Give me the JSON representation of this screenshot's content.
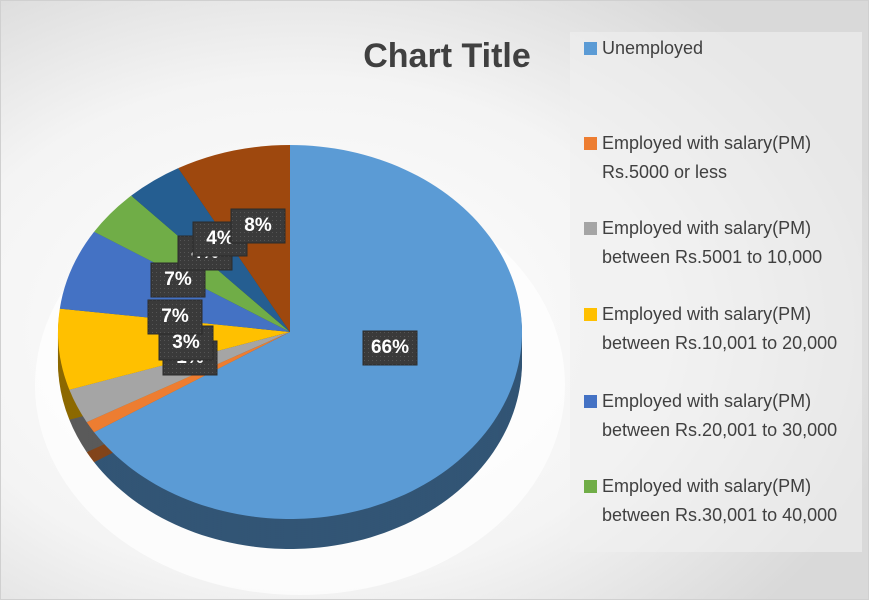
{
  "chart_data": {
    "type": "pie3d",
    "title": "Chart Title",
    "categories": [
      "Unemployed",
      "Employed with salary(PM) Rs.5000 or less",
      "Employed with salary(PM) between Rs.5001 to 10,000",
      "Employed with salary(PM) between Rs.10,001 to 20,000",
      "Employed with salary(PM) between Rs.20,001 to 30,000",
      "Employed with salary(PM) between Rs.30,001 to 40,000",
      null,
      null
    ],
    "values": [
      66,
      1,
      3,
      7,
      7,
      4,
      4,
      8
    ],
    "value_labels": [
      "66%",
      "1%",
      "3%",
      "7%",
      "7%",
      "4%",
      "4%",
      "8%"
    ],
    "colors": [
      "#5b9bd5",
      "#ed7d31",
      "#a5a5a5",
      "#ffc000",
      "#4472c4",
      "#70ad47",
      "#255e91",
      "#9e480e"
    ],
    "legend": "right"
  }
}
